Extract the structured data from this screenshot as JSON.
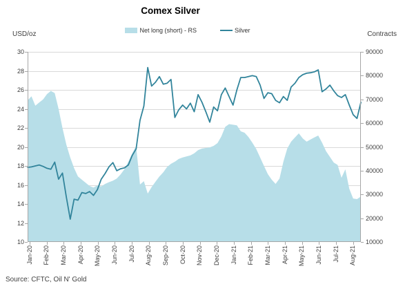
{
  "title": "Comex Silver",
  "axis_left_unit": "USD/oz",
  "axis_right_unit": "Contracts",
  "source": "Source: CFTC, Oil N' Gold",
  "colors": {
    "area": "#b7dee8",
    "line": "#31849b",
    "grid": "#d9d9d9",
    "axis": "#a6a6a6",
    "text": "#404040"
  },
  "chart_data": {
    "type": "area",
    "subtype": "dual-axis area + line, weekly data",
    "title": "Comex Silver",
    "legend_position": "top",
    "grid": true,
    "x_frequency": "weekly",
    "x_ticks": [
      "Jan-20",
      "Feb-20",
      "Mar-20",
      "Apr-20",
      "May-20",
      "Jun-20",
      "Jul-20",
      "Aug-20",
      "Sep-20",
      "Oct-20",
      "Nov-20",
      "Dec-20",
      "Jan-21",
      "Feb-21",
      "Mar-21",
      "Apr-21",
      "May-21",
      "Jun-21",
      "Jul-21",
      "Aug-21"
    ],
    "y_left": {
      "title": "USD/oz",
      "min": 10,
      "max": 30,
      "step": 2
    },
    "y_right": {
      "title": "Contracts",
      "min": 0,
      "max": 90000,
      "step": 10000
    },
    "series": [
      {
        "name": "Net long (short) - RS",
        "type": "area",
        "axis": "right",
        "color": "#b7dee8",
        "values": [
          67000,
          69000,
          64500,
          66000,
          67500,
          70000,
          71500,
          70500,
          63000,
          54000,
          46000,
          40000,
          35000,
          31000,
          29500,
          28000,
          26500,
          25800,
          26800,
          26300,
          27500,
          28300,
          29000,
          30000,
          32000,
          34500,
          38000,
          42000,
          45500,
          27200,
          28800,
          22900,
          26000,
          28500,
          31000,
          33000,
          35500,
          37000,
          38000,
          39300,
          40000,
          40500,
          41000,
          42000,
          43500,
          44200,
          44500,
          44800,
          45500,
          46800,
          50000,
          54500,
          55800,
          55500,
          55200,
          52400,
          51700,
          49700,
          47000,
          44000,
          40000,
          36000,
          32100,
          29500,
          27500,
          30000,
          38000,
          44200,
          47500,
          49500,
          51400,
          49000,
          47500,
          48500,
          49500,
          50400,
          47000,
          43000,
          40300,
          37600,
          36500,
          30400,
          34400,
          25200,
          20600,
          20300,
          21500
        ]
      },
      {
        "name": "Silver",
        "type": "line",
        "axis": "left",
        "color": "#31849b",
        "values": [
          17.85,
          17.9,
          18.0,
          18.1,
          17.95,
          17.75,
          17.65,
          18.4,
          16.6,
          17.25,
          14.7,
          12.4,
          14.5,
          14.4,
          15.2,
          15.1,
          15.3,
          14.9,
          15.5,
          16.6,
          17.2,
          17.9,
          18.35,
          17.5,
          17.7,
          17.8,
          18.1,
          19.1,
          19.8,
          22.8,
          24.3,
          28.35,
          26.4,
          26.8,
          27.4,
          26.6,
          26.7,
          27.1,
          23.1,
          23.9,
          24.4,
          24.0,
          24.6,
          23.7,
          25.5,
          24.7,
          23.7,
          22.6,
          24.2,
          23.8,
          25.5,
          26.2,
          25.3,
          24.4,
          26.0,
          27.3,
          27.3,
          27.4,
          27.5,
          27.4,
          26.5,
          25.1,
          25.7,
          25.6,
          24.9,
          24.65,
          25.3,
          24.9,
          26.3,
          26.7,
          27.3,
          27.6,
          27.75,
          27.8,
          27.9,
          28.1,
          25.8,
          26.1,
          26.5,
          25.9,
          25.4,
          25.2,
          25.5,
          24.4,
          23.4,
          23.0,
          24.7
        ]
      }
    ]
  }
}
